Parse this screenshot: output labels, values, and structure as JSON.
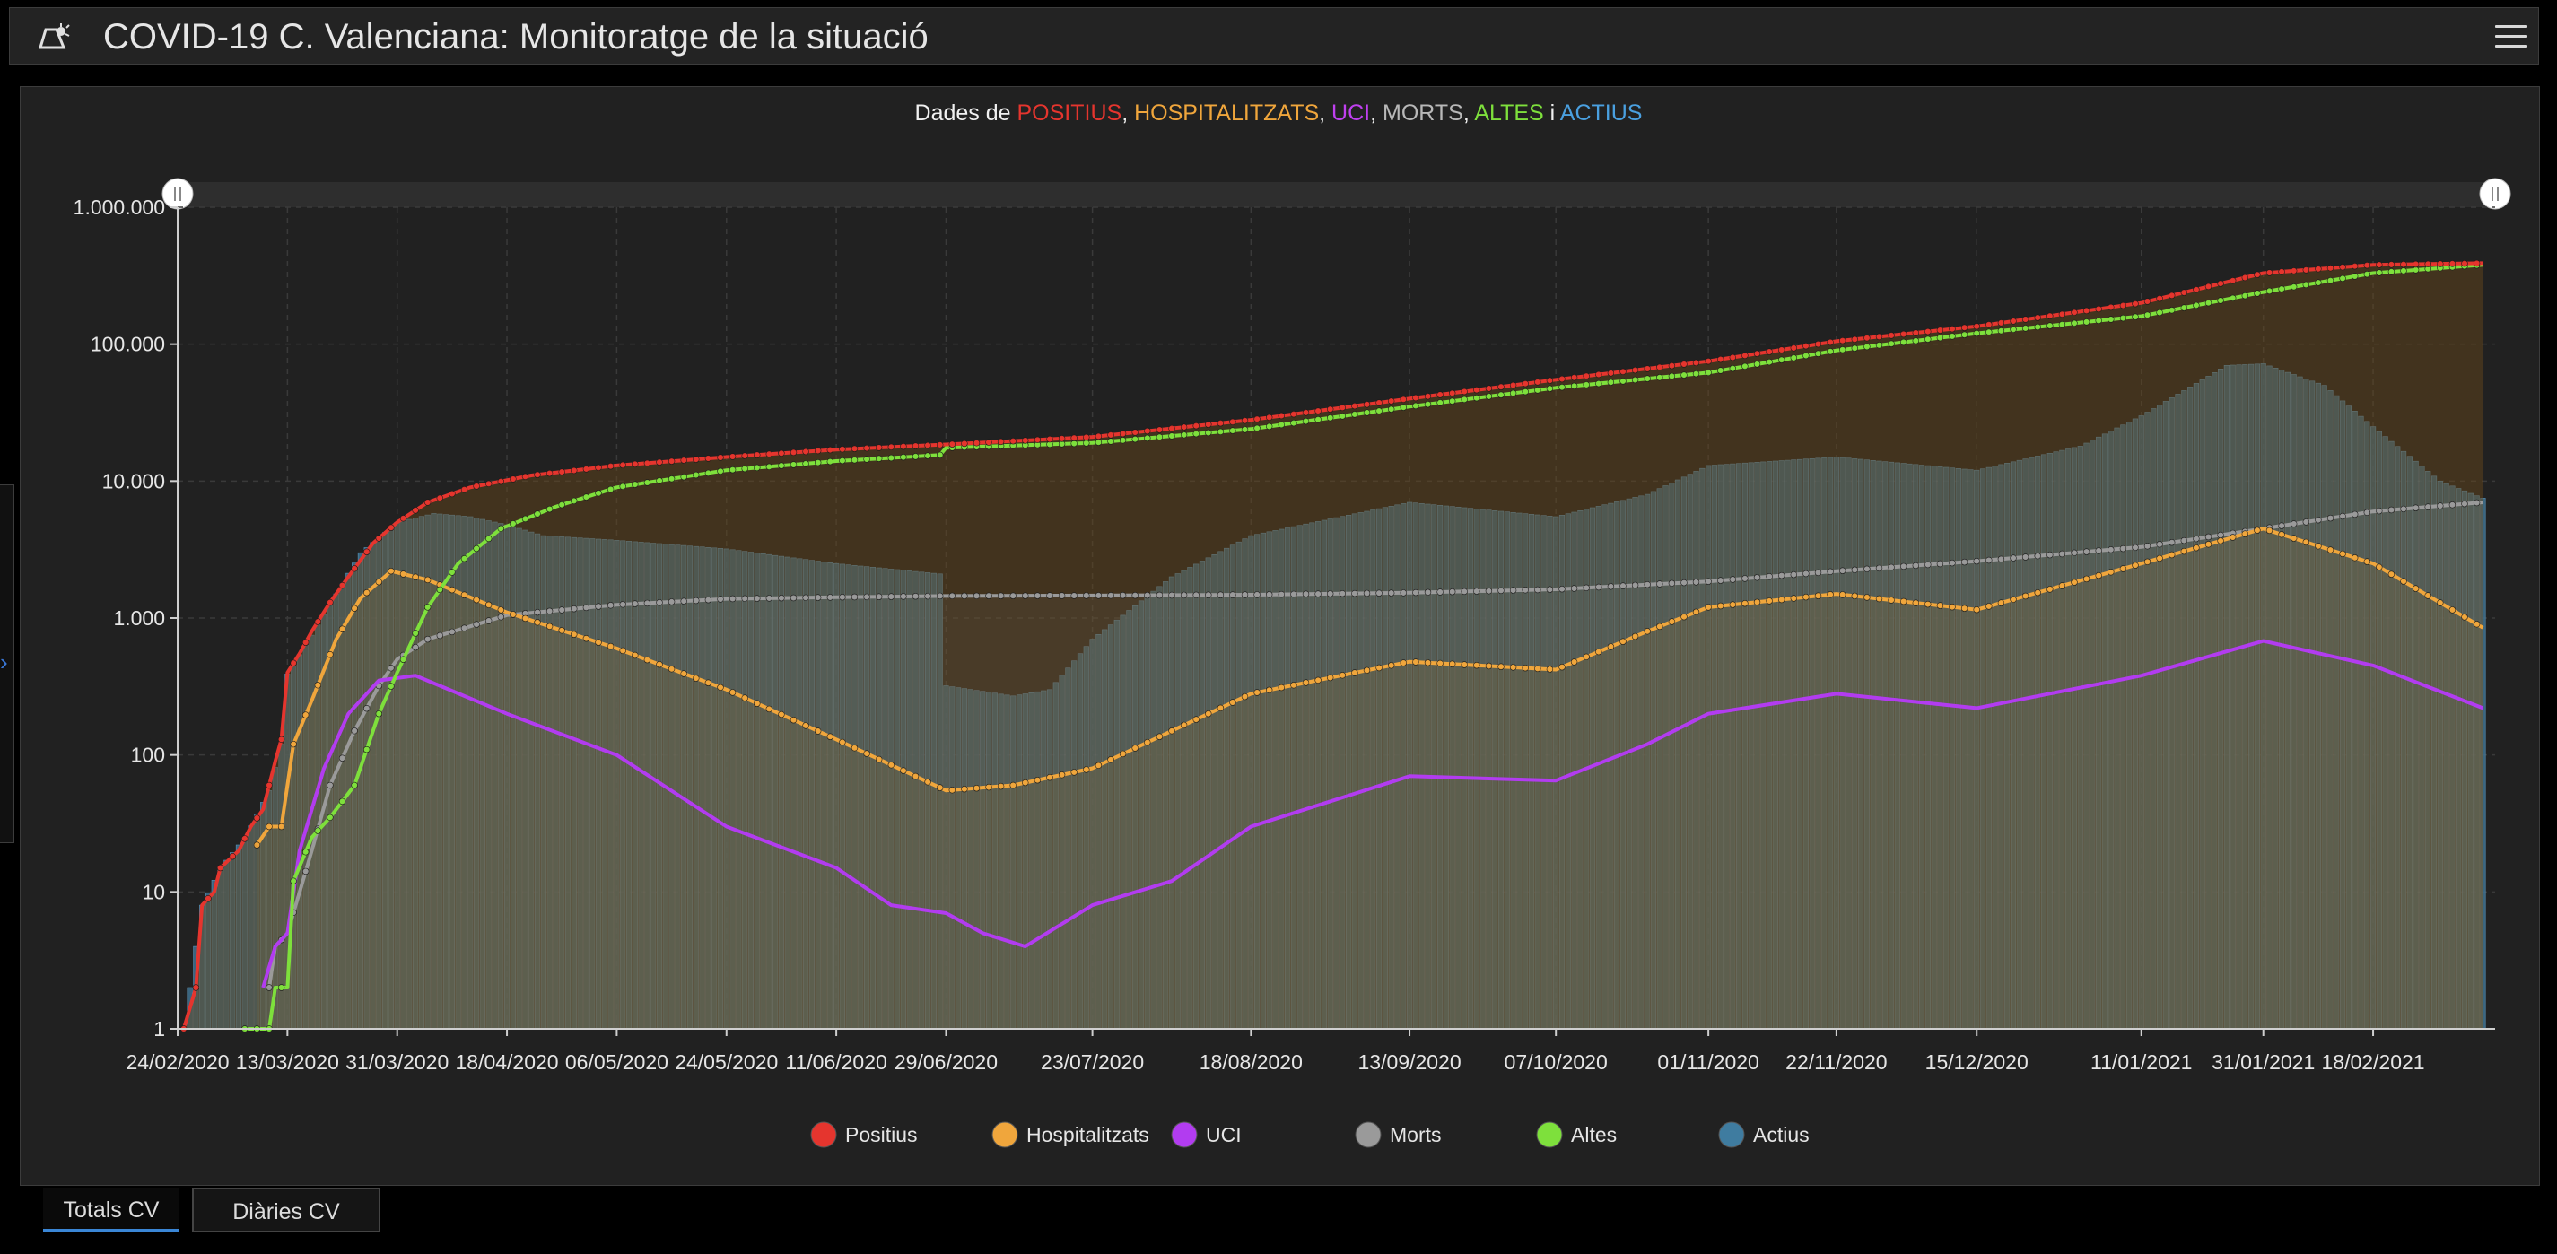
{
  "header": {
    "title": "COVID-19 C. Valenciana: Monitoratge de la situació",
    "logo_icon": "virus-flask-icon",
    "menu_icon": "hamburger-menu-icon"
  },
  "chart_data": {
    "type": "line",
    "title_parts": [
      {
        "text": "Dades de ",
        "color": "#f0f0f0"
      },
      {
        "text": "POSITIUS",
        "color": "#e5352e"
      },
      {
        "text": ", ",
        "color": "#f0f0f0"
      },
      {
        "text": "HOSPITALITZATS",
        "color": "#f0a63c"
      },
      {
        "text": ", ",
        "color": "#f0f0f0"
      },
      {
        "text": "UCI",
        "color": "#c040f0"
      },
      {
        "text": ", ",
        "color": "#f0f0f0"
      },
      {
        "text": "MORTS",
        "color": "#b8b8b8"
      },
      {
        "text": ", ",
        "color": "#f0f0f0"
      },
      {
        "text": "ALTES",
        "color": "#7ee03c"
      },
      {
        "text": " i ",
        "color": "#f0f0f0"
      },
      {
        "text": "ACTIUS",
        "color": "#4aa0e0"
      }
    ],
    "y_scale": "log",
    "ylim": [
      1,
      1000000
    ],
    "y_ticks": [
      {
        "value": 1,
        "label": "1"
      },
      {
        "value": 10,
        "label": "10"
      },
      {
        "value": 100,
        "label": "100"
      },
      {
        "value": 1000,
        "label": "1.000"
      },
      {
        "value": 10000,
        "label": "10.000"
      },
      {
        "value": 100000,
        "label": "100.000"
      },
      {
        "value": 1000000,
        "label": "1.000.000"
      }
    ],
    "xlim": [
      "2020-02-24",
      "2021-03-10"
    ],
    "x_ticks": [
      {
        "date": "2020-02-24",
        "label": "24/02/2020"
      },
      {
        "date": "2020-03-13",
        "label": "13/03/2020"
      },
      {
        "date": "2020-03-31",
        "label": "31/03/2020"
      },
      {
        "date": "2020-04-18",
        "label": "18/04/2020"
      },
      {
        "date": "2020-05-06",
        "label": "06/05/2020"
      },
      {
        "date": "2020-05-24",
        "label": "24/05/2020"
      },
      {
        "date": "2020-06-11",
        "label": "11/06/2020"
      },
      {
        "date": "2020-06-29",
        "label": "29/06/2020"
      },
      {
        "date": "2020-07-23",
        "label": "23/07/2020"
      },
      {
        "date": "2020-08-18",
        "label": "18/08/2020"
      },
      {
        "date": "2020-09-13",
        "label": "13/09/2020"
      },
      {
        "date": "2020-10-07",
        "label": "07/10/2020"
      },
      {
        "date": "2020-11-01",
        "label": "01/11/2020"
      },
      {
        "date": "2020-11-22",
        "label": "22/11/2020"
      },
      {
        "date": "2020-12-15",
        "label": "15/12/2020"
      },
      {
        "date": "2021-01-11",
        "label": "11/01/2021"
      },
      {
        "date": "2021-01-31",
        "label": "31/01/2021"
      },
      {
        "date": "2021-02-18",
        "label": "18/02/2021"
      }
    ],
    "grid": true,
    "legend_position": "bottom",
    "legend": [
      {
        "name": "Positius",
        "color": "#e5352e"
      },
      {
        "name": "Hospitalitzats",
        "color": "#f0a63c"
      },
      {
        "name": "UCI",
        "color": "#b23cf0"
      },
      {
        "name": "Morts",
        "color": "#9a9a9a"
      },
      {
        "name": "Altes",
        "color": "#7ee03c"
      },
      {
        "name": "Actius",
        "color": "#3f7ca0"
      }
    ],
    "series": [
      {
        "name": "Positius",
        "color": "#e5352e",
        "style": "line-markers",
        "points": [
          [
            "2020-02-25",
            1
          ],
          [
            "2020-02-27",
            2
          ],
          [
            "2020-02-28",
            8
          ],
          [
            "2020-03-01",
            10
          ],
          [
            "2020-03-02",
            15
          ],
          [
            "2020-03-05",
            20
          ],
          [
            "2020-03-07",
            30
          ],
          [
            "2020-03-09",
            40
          ],
          [
            "2020-03-10",
            60
          ],
          [
            "2020-03-11",
            90
          ],
          [
            "2020-03-12",
            130
          ],
          [
            "2020-03-13",
            400
          ],
          [
            "2020-03-15",
            550
          ],
          [
            "2020-03-17",
            800
          ],
          [
            "2020-03-20",
            1300
          ],
          [
            "2020-03-23",
            2000
          ],
          [
            "2020-03-27",
            3500
          ],
          [
            "2020-03-31",
            5000
          ],
          [
            "2020-04-05",
            7000
          ],
          [
            "2020-04-12",
            9000
          ],
          [
            "2020-04-22",
            11000
          ],
          [
            "2020-05-06",
            13000
          ],
          [
            "2020-05-24",
            15000
          ],
          [
            "2020-06-11",
            17000
          ],
          [
            "2020-06-29",
            18500
          ],
          [
            "2020-07-23",
            21000
          ],
          [
            "2020-08-18",
            28000
          ],
          [
            "2020-09-13",
            40000
          ],
          [
            "2020-10-07",
            55000
          ],
          [
            "2020-11-01",
            75000
          ],
          [
            "2020-11-22",
            105000
          ],
          [
            "2020-12-15",
            135000
          ],
          [
            "2021-01-11",
            200000
          ],
          [
            "2021-01-31",
            330000
          ],
          [
            "2021-02-18",
            380000
          ],
          [
            "2021-03-08",
            390000
          ]
        ]
      },
      {
        "name": "Altes",
        "color": "#7ee03c",
        "style": "line-markers",
        "points": [
          [
            "2020-03-06",
            1
          ],
          [
            "2020-03-10",
            1
          ],
          [
            "2020-03-11",
            2
          ],
          [
            "2020-03-13",
            2
          ],
          [
            "2020-03-14",
            12
          ],
          [
            "2020-03-17",
            25
          ],
          [
            "2020-03-20",
            35
          ],
          [
            "2020-03-24",
            60
          ],
          [
            "2020-03-28",
            200
          ],
          [
            "2020-03-31",
            400
          ],
          [
            "2020-04-05",
            1200
          ],
          [
            "2020-04-10",
            2500
          ],
          [
            "2020-04-17",
            4500
          ],
          [
            "2020-04-26",
            6500
          ],
          [
            "2020-05-06",
            9000
          ],
          [
            "2020-05-24",
            12000
          ],
          [
            "2020-06-11",
            14000
          ],
          [
            "2020-06-28",
            15500
          ],
          [
            "2020-06-29",
            17500
          ],
          [
            "2020-07-23",
            19000
          ],
          [
            "2020-08-18",
            24000
          ],
          [
            "2020-09-13",
            35000
          ],
          [
            "2020-10-07",
            48000
          ],
          [
            "2020-11-01",
            62000
          ],
          [
            "2020-11-22",
            90000
          ],
          [
            "2020-12-15",
            120000
          ],
          [
            "2021-01-11",
            160000
          ],
          [
            "2021-01-31",
            240000
          ],
          [
            "2021-02-18",
            330000
          ],
          [
            "2021-03-08",
            380000
          ]
        ]
      },
      {
        "name": "Morts",
        "color": "#9a9a9a",
        "style": "line-markers",
        "points": [
          [
            "2020-03-10",
            2
          ],
          [
            "2020-03-11",
            4
          ],
          [
            "2020-03-13",
            5
          ],
          [
            "2020-03-17",
            20
          ],
          [
            "2020-03-20",
            60
          ],
          [
            "2020-03-24",
            150
          ],
          [
            "2020-03-28",
            320
          ],
          [
            "2020-03-31",
            500
          ],
          [
            "2020-04-05",
            700
          ],
          [
            "2020-04-18",
            1050
          ],
          [
            "2020-05-06",
            1250
          ],
          [
            "2020-05-24",
            1380
          ],
          [
            "2020-06-11",
            1420
          ],
          [
            "2020-06-29",
            1450
          ],
          [
            "2020-07-23",
            1460
          ],
          [
            "2020-08-18",
            1480
          ],
          [
            "2020-09-13",
            1530
          ],
          [
            "2020-10-07",
            1620
          ],
          [
            "2020-11-01",
            1850
          ],
          [
            "2020-11-22",
            2200
          ],
          [
            "2020-12-15",
            2600
          ],
          [
            "2021-01-11",
            3300
          ],
          [
            "2021-01-31",
            4500
          ],
          [
            "2021-02-18",
            6000
          ],
          [
            "2021-03-08",
            7000
          ]
        ]
      },
      {
        "name": "Hospitalitzats",
        "color": "#f0a63c",
        "style": "line-markers",
        "points": [
          [
            "2020-03-08",
            22
          ],
          [
            "2020-03-10",
            30
          ],
          [
            "2020-03-12",
            30
          ],
          [
            "2020-03-14",
            120
          ],
          [
            "2020-03-17",
            250
          ],
          [
            "2020-03-21",
            700
          ],
          [
            "2020-03-25",
            1400
          ],
          [
            "2020-03-30",
            2200
          ],
          [
            "2020-04-05",
            1900
          ],
          [
            "2020-04-18",
            1100
          ],
          [
            "2020-05-06",
            600
          ],
          [
            "2020-05-24",
            300
          ],
          [
            "2020-06-11",
            130
          ],
          [
            "2020-06-29",
            55
          ],
          [
            "2020-07-10",
            60
          ],
          [
            "2020-07-23",
            80
          ],
          [
            "2020-08-05",
            150
          ],
          [
            "2020-08-18",
            280
          ],
          [
            "2020-09-13",
            480
          ],
          [
            "2020-10-07",
            420
          ],
          [
            "2020-10-22",
            800
          ],
          [
            "2020-11-01",
            1200
          ],
          [
            "2020-11-22",
            1500
          ],
          [
            "2020-12-15",
            1150
          ],
          [
            "2021-01-11",
            2500
          ],
          [
            "2021-01-31",
            4500
          ],
          [
            "2021-02-18",
            2500
          ],
          [
            "2021-03-08",
            850
          ]
        ]
      },
      {
        "name": "UCI",
        "color": "#b23cf0",
        "style": "line",
        "points": [
          [
            "2020-03-09",
            2
          ],
          [
            "2020-03-11",
            4
          ],
          [
            "2020-03-13",
            5
          ],
          [
            "2020-03-15",
            20
          ],
          [
            "2020-03-19",
            80
          ],
          [
            "2020-03-23",
            200
          ],
          [
            "2020-03-28",
            350
          ],
          [
            "2020-04-03",
            380
          ],
          [
            "2020-04-18",
            200
          ],
          [
            "2020-05-06",
            100
          ],
          [
            "2020-05-24",
            30
          ],
          [
            "2020-06-11",
            15
          ],
          [
            "2020-06-20",
            8
          ],
          [
            "2020-06-29",
            7
          ],
          [
            "2020-07-05",
            5
          ],
          [
            "2020-07-12",
            4
          ],
          [
            "2020-07-23",
            8
          ],
          [
            "2020-08-05",
            12
          ],
          [
            "2020-08-18",
            30
          ],
          [
            "2020-09-13",
            70
          ],
          [
            "2020-10-07",
            65
          ],
          [
            "2020-10-22",
            120
          ],
          [
            "2020-11-01",
            200
          ],
          [
            "2020-11-22",
            280
          ],
          [
            "2020-12-15",
            220
          ],
          [
            "2021-01-11",
            380
          ],
          [
            "2021-01-31",
            680
          ],
          [
            "2021-02-18",
            450
          ],
          [
            "2021-03-08",
            220
          ]
        ]
      },
      {
        "name": "Actius",
        "color": "#4a8ab0",
        "style": "bars",
        "points": [
          [
            "2020-02-25",
            1
          ],
          [
            "2020-02-28",
            8
          ],
          [
            "2020-03-02",
            15
          ],
          [
            "2020-03-06",
            25
          ],
          [
            "2020-03-10",
            55
          ],
          [
            "2020-03-12",
            120
          ],
          [
            "2020-03-13",
            390
          ],
          [
            "2020-03-17",
            750
          ],
          [
            "2020-03-21",
            1500
          ],
          [
            "2020-03-25",
            3000
          ],
          [
            "2020-03-31",
            5000
          ],
          [
            "2020-04-06",
            5800
          ],
          [
            "2020-04-12",
            5500
          ],
          [
            "2020-04-18",
            4800
          ],
          [
            "2020-04-24",
            4000
          ],
          [
            "2020-05-06",
            3700
          ],
          [
            "2020-05-24",
            3200
          ],
          [
            "2020-06-11",
            2500
          ],
          [
            "2020-06-28",
            2100
          ],
          [
            "2020-06-29",
            320
          ],
          [
            "2020-07-10",
            270
          ],
          [
            "2020-07-16",
            300
          ],
          [
            "2020-07-23",
            700
          ],
          [
            "2020-08-05",
            2000
          ],
          [
            "2020-08-18",
            4000
          ],
          [
            "2020-09-13",
            7000
          ],
          [
            "2020-10-07",
            5500
          ],
          [
            "2020-10-22",
            8000
          ],
          [
            "2020-11-01",
            13000
          ],
          [
            "2020-11-22",
            15000
          ],
          [
            "2020-12-15",
            12000
          ],
          [
            "2021-01-01",
            18000
          ],
          [
            "2021-01-11",
            30000
          ],
          [
            "2021-01-25",
            70000
          ],
          [
            "2021-01-31",
            72000
          ],
          [
            "2021-02-10",
            50000
          ],
          [
            "2021-02-18",
            25000
          ],
          [
            "2021-03-01",
            10000
          ],
          [
            "2021-03-08",
            7500
          ]
        ]
      }
    ]
  },
  "tabs": [
    {
      "label": "Totals CV",
      "active": true
    },
    {
      "label": "Diàries CV",
      "active": false
    }
  ]
}
